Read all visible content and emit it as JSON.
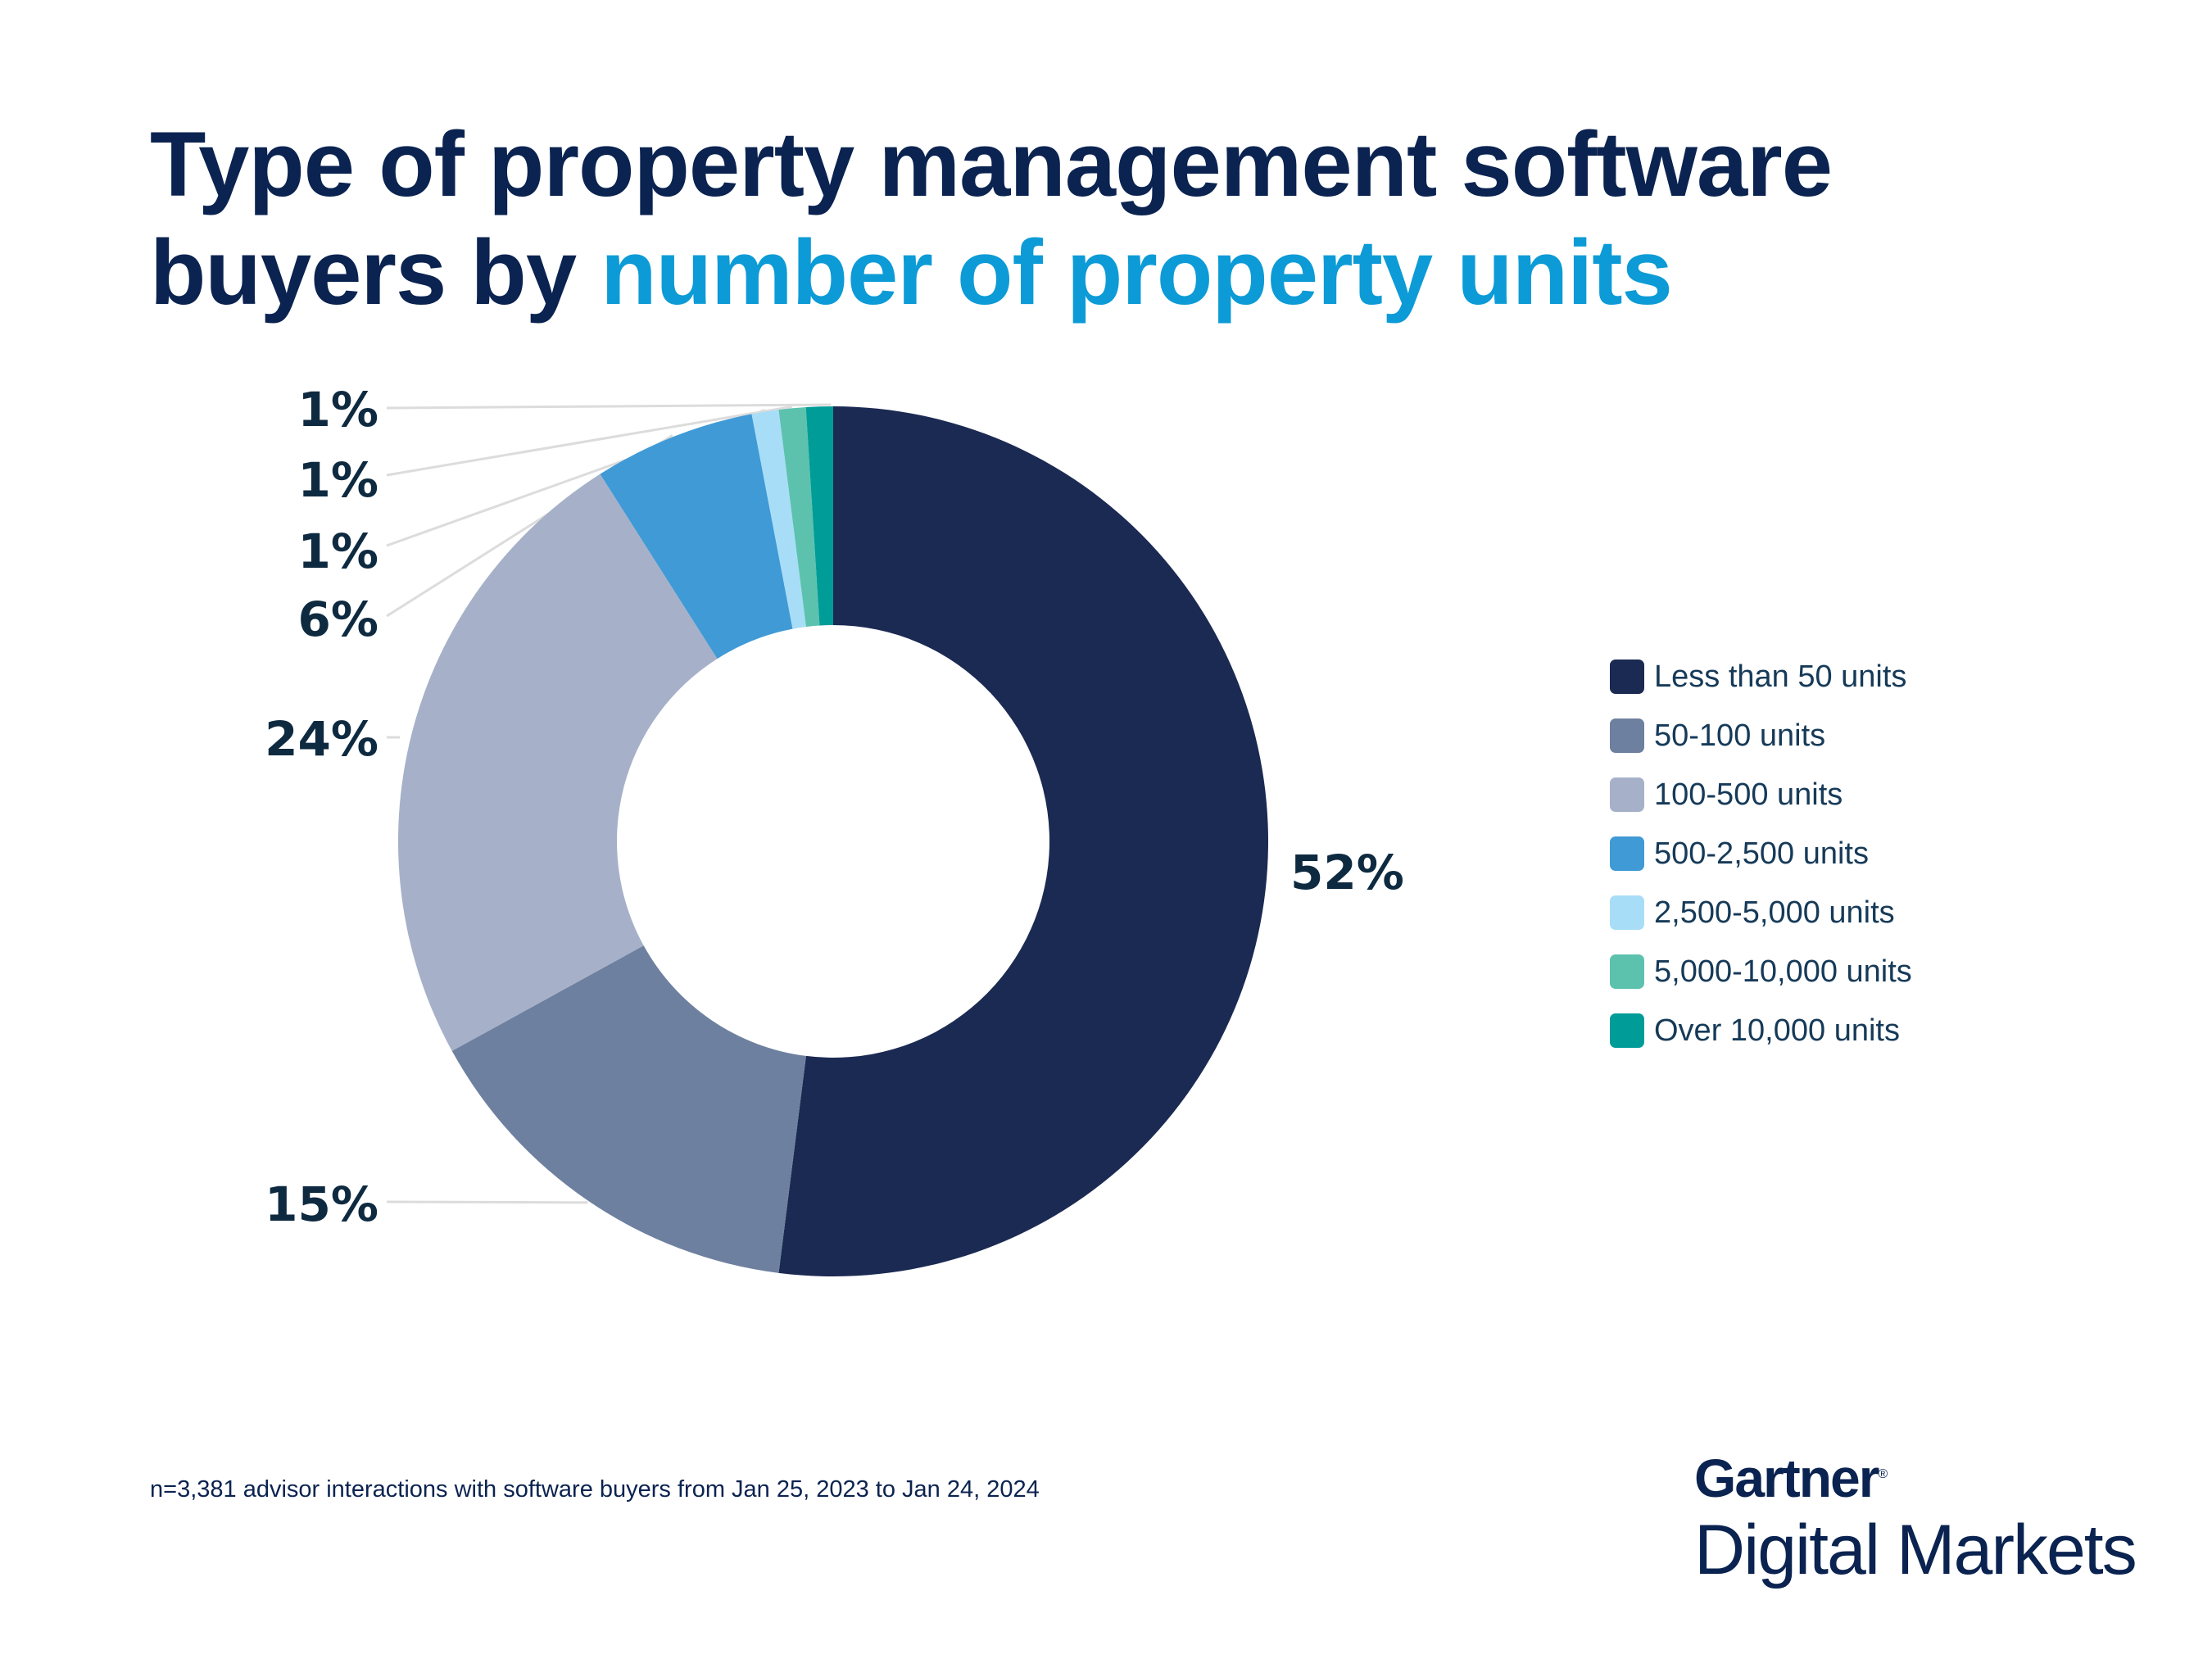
{
  "title": {
    "part1": "Type of property management software",
    "part2": "buyers by ",
    "part3": "number of property units"
  },
  "chart_data": {
    "type": "pie",
    "variant": "donut",
    "start": "12 o'clock, clockwise",
    "categories": [
      "Less than 50 units",
      "50-100 units",
      "100-500 units",
      "500-2,500 units",
      "2,500-5,000 units",
      "5,000-10,000 units",
      "Over 10,000 units"
    ],
    "values": [
      52,
      15,
      24,
      6,
      1,
      1,
      1
    ],
    "data_labels": [
      "52%",
      "15%",
      "24%",
      "6%",
      "1%",
      "1%",
      "1%"
    ],
    "colors": [
      "#1b2a52",
      "#6e809f",
      "#a6b1c9",
      "#3f9ad6",
      "#a8ddf7",
      "#5cc2ae",
      "#009c98"
    ],
    "legend_position": "right"
  },
  "footnote": "n=3,381 advisor interactions with software buyers from Jan 25, 2023 to Jan 24, 2024",
  "brand": {
    "name": "Gartner",
    "mark": "®",
    "sub": "Digital Markets"
  }
}
